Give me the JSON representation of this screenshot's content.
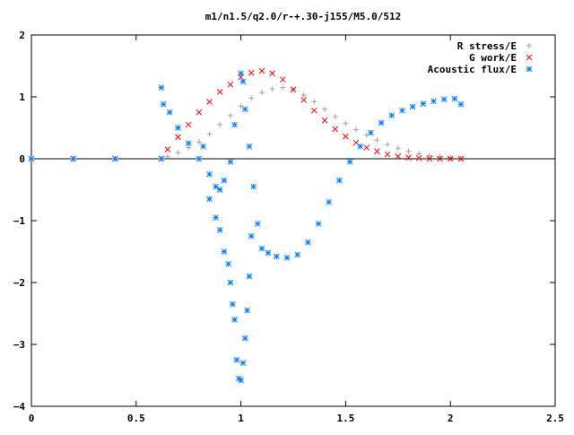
{
  "chart_data": {
    "type": "scatter",
    "title": "m1/n1.5/q2.0/r-+.30-j155/M5.0/512",
    "xlabel": "",
    "ylabel": "",
    "xlim": [
      0,
      2.5
    ],
    "ylim": [
      -4,
      2
    ],
    "x_ticks": [
      "0",
      "0.5",
      "1",
      "1.5",
      "2",
      "2.5"
    ],
    "y_ticks": [
      "2",
      "1",
      "0",
      "−1",
      "−2",
      "−3",
      "−4"
    ],
    "legend_position": "top-right",
    "grid": false,
    "series": [
      {
        "name": "R stress/E",
        "marker": "+",
        "color": "#a0a0a0",
        "points": [
          [
            0.0,
            0.0
          ],
          [
            0.2,
            0.0
          ],
          [
            0.4,
            0.0
          ],
          [
            0.62,
            0.0
          ],
          [
            0.65,
            0.03
          ],
          [
            0.7,
            0.1
          ],
          [
            0.75,
            0.18
          ],
          [
            0.8,
            0.27
          ],
          [
            0.85,
            0.4
          ],
          [
            0.9,
            0.55
          ],
          [
            0.95,
            0.7
          ],
          [
            1.0,
            0.85
          ],
          [
            1.05,
            0.98
          ],
          [
            1.1,
            1.07
          ],
          [
            1.15,
            1.13
          ],
          [
            1.2,
            1.15
          ],
          [
            1.25,
            1.12
          ],
          [
            1.3,
            1.03
          ],
          [
            1.35,
            0.92
          ],
          [
            1.4,
            0.8
          ],
          [
            1.45,
            0.68
          ],
          [
            1.5,
            0.57
          ],
          [
            1.55,
            0.47
          ],
          [
            1.6,
            0.38
          ],
          [
            1.65,
            0.3
          ],
          [
            1.7,
            0.23
          ],
          [
            1.75,
            0.17
          ],
          [
            1.8,
            0.12
          ],
          [
            1.85,
            0.08
          ],
          [
            1.9,
            0.05
          ],
          [
            1.95,
            0.03
          ],
          [
            2.0,
            0.02
          ],
          [
            2.05,
            0.01
          ]
        ]
      },
      {
        "name": "G work/E",
        "marker": "x",
        "color": "#ff0000",
        "points": [
          [
            0.0,
            0.0
          ],
          [
            0.2,
            0.0
          ],
          [
            0.4,
            0.0
          ],
          [
            0.62,
            0.0
          ],
          [
            0.65,
            0.15
          ],
          [
            0.7,
            0.35
          ],
          [
            0.75,
            0.55
          ],
          [
            0.8,
            0.75
          ],
          [
            0.85,
            0.92
          ],
          [
            0.9,
            1.08
          ],
          [
            0.95,
            1.2
          ],
          [
            1.0,
            1.32
          ],
          [
            1.05,
            1.39
          ],
          [
            1.1,
            1.42
          ],
          [
            1.15,
            1.38
          ],
          [
            1.2,
            1.28
          ],
          [
            1.25,
            1.12
          ],
          [
            1.3,
            0.95
          ],
          [
            1.35,
            0.78
          ],
          [
            1.4,
            0.62
          ],
          [
            1.45,
            0.48
          ],
          [
            1.5,
            0.36
          ],
          [
            1.55,
            0.26
          ],
          [
            1.6,
            0.18
          ],
          [
            1.65,
            0.12
          ],
          [
            1.7,
            0.07
          ],
          [
            1.75,
            0.04
          ],
          [
            1.8,
            0.02
          ],
          [
            1.85,
            0.01
          ],
          [
            1.9,
            0.0
          ],
          [
            1.95,
            0.0
          ],
          [
            2.0,
            0.0
          ],
          [
            2.05,
            0.0
          ]
        ]
      },
      {
        "name": "Acoustic flux/E",
        "marker": "*",
        "color": "#0080ff",
        "points": [
          [
            0.0,
            0.0
          ],
          [
            0.2,
            0.0
          ],
          [
            0.4,
            0.0
          ],
          [
            0.62,
            0.0
          ],
          [
            0.62,
            1.15
          ],
          [
            0.63,
            0.88
          ],
          [
            0.66,
            0.75
          ],
          [
            0.7,
            0.5
          ],
          [
            0.75,
            0.25
          ],
          [
            0.8,
            0.0
          ],
          [
            0.85,
            -0.25
          ],
          [
            0.88,
            -0.45
          ],
          [
            0.9,
            -0.5
          ],
          [
            0.92,
            -0.35
          ],
          [
            0.95,
            -0.05
          ],
          [
            0.97,
            0.55
          ],
          [
            1.0,
            1.38
          ],
          [
            1.01,
            1.25
          ],
          [
            1.02,
            0.8
          ],
          [
            1.04,
            0.2
          ],
          [
            1.06,
            -0.45
          ],
          [
            1.08,
            -1.05
          ],
          [
            1.1,
            -1.45
          ],
          [
            1.13,
            -1.52
          ],
          [
            1.17,
            -1.58
          ],
          [
            1.22,
            -1.6
          ],
          [
            1.27,
            -1.55
          ],
          [
            1.32,
            -1.35
          ],
          [
            1.37,
            -1.05
          ],
          [
            1.42,
            -0.7
          ],
          [
            1.47,
            -0.35
          ],
          [
            1.52,
            -0.05
          ],
          [
            1.57,
            0.2
          ],
          [
            1.62,
            0.42
          ],
          [
            1.67,
            0.58
          ],
          [
            1.72,
            0.7
          ],
          [
            1.77,
            0.78
          ],
          [
            1.82,
            0.84
          ],
          [
            1.87,
            0.89
          ],
          [
            1.92,
            0.93
          ],
          [
            1.97,
            0.96
          ],
          [
            2.02,
            0.97
          ],
          [
            2.05,
            0.88
          ],
          [
            0.82,
            0.2
          ],
          [
            0.85,
            -0.65
          ],
          [
            0.88,
            -0.95
          ],
          [
            0.9,
            -1.15
          ],
          [
            0.92,
            -1.5
          ],
          [
            0.94,
            -1.7
          ],
          [
            0.95,
            -2.0
          ],
          [
            0.96,
            -2.35
          ],
          [
            0.97,
            -2.6
          ],
          [
            0.98,
            -3.25
          ],
          [
            0.99,
            -3.55
          ],
          [
            1.0,
            -3.58
          ],
          [
            1.01,
            -3.3
          ],
          [
            1.02,
            -2.9
          ],
          [
            1.03,
            -2.45
          ],
          [
            1.04,
            -1.9
          ],
          [
            1.05,
            -1.25
          ]
        ]
      }
    ]
  }
}
